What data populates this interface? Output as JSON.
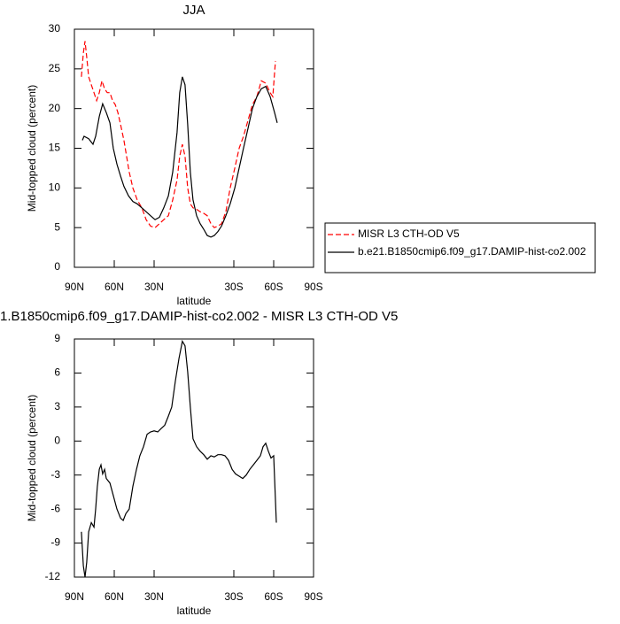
{
  "chart_data": [
    {
      "type": "line",
      "title": "JJA",
      "xlabel": "latitude",
      "ylabel": "Mid-topped cloud (percent)",
      "xlim": [
        90,
        -90
      ],
      "xticks": [
        {
          "value": 90,
          "label": "90N"
        },
        {
          "value": 60,
          "label": "60N"
        },
        {
          "value": 30,
          "label": "30N"
        },
        {
          "value": -30,
          "label": "30S"
        },
        {
          "value": -60,
          "label": "60S"
        },
        {
          "value": -90,
          "label": "90S"
        }
      ],
      "ylim": [
        0,
        30
      ],
      "yticks": [
        0,
        5,
        10,
        15,
        20,
        25,
        30
      ],
      "legend": "right",
      "series": [
        {
          "name": "MISR L3 CTH-OD V5",
          "color": "#ff0000",
          "dash": true,
          "x": [
            84.7,
            83.3,
            82,
            80.7,
            79.3,
            77.3,
            75.3,
            73.3,
            71.3,
            69.3,
            67.3,
            65.3,
            63.3,
            61.3,
            59.3,
            57.3,
            55.3,
            52.7,
            50.7,
            48.7,
            46,
            42.7,
            39.3,
            36,
            32.7,
            29.3,
            26,
            22.7,
            19.3,
            16,
            12.7,
            10.7,
            8.7,
            6.7,
            4.7,
            2.7,
            0.7,
            -2,
            -4.7,
            -7.3,
            -10,
            -12.7,
            -15.3,
            -18,
            -20.7,
            -24,
            -27.3,
            -30.7,
            -34,
            -37.3,
            -40.7,
            -44,
            -47.3,
            -50.7,
            -54,
            -57.3,
            -59.3,
            -61.3
          ],
          "values": [
            24,
            27,
            28.5,
            26.5,
            24,
            23,
            22,
            21,
            22,
            23.5,
            22.5,
            22,
            22,
            21,
            20.5,
            19.5,
            18,
            16,
            14,
            12,
            10,
            8.5,
            7.5,
            6,
            5.2,
            5,
            5.5,
            6,
            6.5,
            8.5,
            11,
            14,
            15.5,
            14,
            10,
            8,
            7.5,
            7.3,
            7,
            6.8,
            6.5,
            5.5,
            5,
            5.2,
            5.5,
            7,
            10,
            12.5,
            15,
            16.5,
            18.5,
            20.5,
            21.5,
            23.5,
            23.2,
            22,
            21.5,
            26
          ]
        },
        {
          "name": "b.e21.B1850cmip6.f09_g17.DAMIP-hist-co2.002",
          "color": "#000000",
          "dash": false,
          "x": [
            84,
            82.7,
            79.3,
            76,
            74,
            71.3,
            68.7,
            66,
            63.3,
            60.7,
            58,
            55.3,
            52.7,
            49.3,
            46,
            42.7,
            39.3,
            36,
            32.7,
            29.3,
            26,
            22.7,
            19.3,
            16,
            12.7,
            10.7,
            8.7,
            6.7,
            4.7,
            2.7,
            0.7,
            -2,
            -4.7,
            -7.3,
            -10,
            -12.7,
            -15.3,
            -18,
            -20.7,
            -24,
            -27.3,
            -30.7,
            -34,
            -37.3,
            -40.7,
            -44,
            -47.3,
            -50.7,
            -54,
            -57.3,
            -60.7,
            -62.7
          ],
          "values": [
            16,
            16.5,
            16.2,
            15.5,
            16.5,
            19,
            20.6,
            19.5,
            18.2,
            15,
            13,
            11.5,
            10.2,
            9,
            8.3,
            8,
            7.5,
            7,
            6.5,
            6,
            6.3,
            7.5,
            9,
            12,
            17,
            22,
            24,
            23,
            18,
            12,
            8.5,
            6.5,
            5.5,
            4.8,
            4,
            3.8,
            4,
            4.5,
            5.2,
            6.5,
            8,
            10,
            12.5,
            15,
            17.5,
            20,
            21.5,
            22.5,
            22.8,
            21.5,
            19.5,
            18.2
          ]
        }
      ]
    },
    {
      "type": "line",
      "title": "1.B1850cmip6.f09_g17.DAMIP-hist-co2.002 - MISR L3 CTH-OD V5",
      "xlabel": "latitude",
      "ylabel": "Mid-topped cloud (percent)",
      "xlim": [
        90,
        -90
      ],
      "xticks": [
        {
          "value": 90,
          "label": "90N"
        },
        {
          "value": 60,
          "label": "60N"
        },
        {
          "value": 30,
          "label": "30N"
        },
        {
          "value": -30,
          "label": "30S"
        },
        {
          "value": -60,
          "label": "60S"
        },
        {
          "value": -90,
          "label": "90S"
        }
      ],
      "ylim": [
        -12,
        9
      ],
      "yticks": [
        9,
        6,
        3,
        0,
        -3,
        -6,
        -9,
        -12
      ],
      "series": [
        {
          "color": "#000000",
          "dash": false,
          "x": [
            84.7,
            83.3,
            82,
            80.7,
            79.3,
            77.3,
            75.3,
            74,
            72.7,
            71.3,
            70,
            68.7,
            67.3,
            66,
            63.3,
            60.7,
            58,
            55.3,
            53.3,
            51.3,
            48.7,
            46,
            43.3,
            40.7,
            38,
            35.3,
            32.7,
            30,
            27.3,
            24.7,
            22,
            19.3,
            16.7,
            14,
            11.3,
            8.7,
            6.7,
            4.7,
            2.7,
            0.7,
            -2,
            -4.7,
            -7.3,
            -10,
            -12.7,
            -15.3,
            -18,
            -20.7,
            -23.3,
            -26,
            -28.7,
            -31.3,
            -34,
            -36.7,
            -39.3,
            -42,
            -44.7,
            -47.3,
            -50,
            -52,
            -54,
            -56,
            -58,
            -60,
            -62
          ],
          "values": [
            -8,
            -11,
            -12,
            -10.7,
            -8,
            -7.2,
            -7.6,
            -6,
            -4,
            -2.5,
            -2.1,
            -2.9,
            -2.5,
            -3.3,
            -3.7,
            -4.8,
            -6,
            -6.8,
            -7,
            -6.4,
            -6,
            -4,
            -2.5,
            -1.3,
            -0.5,
            0.6,
            0.8,
            0.9,
            0.8,
            1.1,
            1.4,
            2.2,
            3,
            5.3,
            7.3,
            8.8,
            8.4,
            6.1,
            3,
            0.2,
            -0.5,
            -0.9,
            -1.2,
            -1.6,
            -1.3,
            -1.4,
            -1.2,
            -1.2,
            -1.3,
            -1.7,
            -2.5,
            -2.9,
            -3.1,
            -3.3,
            -3,
            -2.5,
            -2.1,
            -1.7,
            -1.3,
            -0.5,
            -0.2,
            -0.9,
            -1.5,
            -1.3,
            -7.2
          ]
        }
      ]
    }
  ]
}
